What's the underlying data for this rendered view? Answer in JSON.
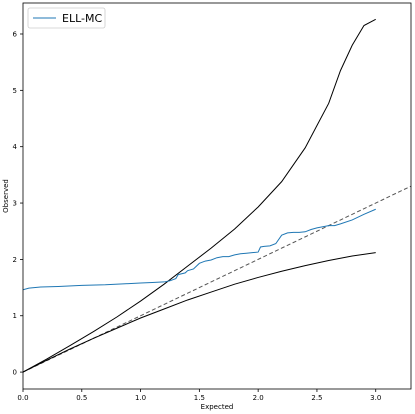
{
  "chart_data": {
    "type": "line",
    "title": "",
    "xlabel": "Expected",
    "ylabel": "Observed",
    "xlim": [
      0,
      3.3
    ],
    "ylim": [
      -0.3,
      6.55
    ],
    "xticks": [
      0.0,
      0.5,
      1.0,
      1.5,
      2.0,
      2.5,
      3.0
    ],
    "xtick_labels": [
      "0.0",
      "0.5",
      "1.0",
      "1.5",
      "2.0",
      "2.5",
      "3.0"
    ],
    "yticks": [
      0,
      1,
      2,
      3,
      4,
      5,
      6
    ],
    "ytick_labels": [
      "0",
      "1",
      "2",
      "3",
      "4",
      "5",
      "6"
    ],
    "grid": false,
    "legend": {
      "position": "top-left",
      "entries": [
        "ELL-MC"
      ]
    },
    "series": [
      {
        "name": "ELL-MC",
        "color": "#1f77b4",
        "style": "solid",
        "x": [
          0.0,
          0.05,
          0.15,
          0.3,
          0.5,
          0.7,
          0.9,
          1.0,
          1.1,
          1.2,
          1.25,
          1.3,
          1.32,
          1.38,
          1.4,
          1.45,
          1.5,
          1.55,
          1.6,
          1.65,
          1.7,
          1.75,
          1.8,
          1.85,
          1.9,
          1.95,
          2.0,
          2.02,
          2.05,
          2.1,
          2.15,
          2.2,
          2.25,
          2.3,
          2.35,
          2.4,
          2.45,
          2.5,
          2.55,
          2.6,
          2.65,
          2.7,
          2.8,
          2.9,
          3.0
        ],
        "y": [
          1.46,
          1.49,
          1.51,
          1.52,
          1.54,
          1.55,
          1.57,
          1.58,
          1.59,
          1.6,
          1.62,
          1.66,
          1.73,
          1.76,
          1.8,
          1.83,
          1.93,
          1.97,
          1.99,
          2.03,
          2.05,
          2.05,
          2.08,
          2.1,
          2.11,
          2.12,
          2.13,
          2.22,
          2.23,
          2.24,
          2.28,
          2.43,
          2.47,
          2.48,
          2.48,
          2.49,
          2.53,
          2.56,
          2.58,
          2.6,
          2.6,
          2.63,
          2.7,
          2.8,
          2.89
        ]
      },
      {
        "color": "#000000",
        "style": "solid",
        "x": [
          0.0,
          0.2,
          0.4,
          0.6,
          0.8,
          1.0,
          1.2,
          1.4,
          1.6,
          1.8,
          2.0,
          2.2,
          2.4,
          2.6,
          2.8,
          3.0
        ],
        "y": [
          0.0,
          0.21,
          0.41,
          0.6,
          0.78,
          0.96,
          1.12,
          1.28,
          1.42,
          1.56,
          1.68,
          1.79,
          1.89,
          1.98,
          2.06,
          2.12
        ]
      },
      {
        "color": "#000000",
        "style": "solid",
        "x": [
          0.0,
          0.2,
          0.4,
          0.6,
          0.8,
          1.0,
          1.2,
          1.4,
          1.6,
          1.8,
          2.0,
          2.2,
          2.4,
          2.6,
          2.7,
          2.8,
          2.9,
          3.0
        ],
        "y": [
          0.0,
          0.23,
          0.47,
          0.72,
          0.98,
          1.26,
          1.56,
          1.88,
          2.2,
          2.54,
          2.93,
          3.38,
          3.98,
          4.77,
          5.35,
          5.8,
          6.15,
          6.26
        ]
      },
      {
        "color": "#555555",
        "style": "dashed",
        "x": [
          0.0,
          3.3
        ],
        "y": [
          0.0,
          3.3
        ]
      }
    ]
  }
}
